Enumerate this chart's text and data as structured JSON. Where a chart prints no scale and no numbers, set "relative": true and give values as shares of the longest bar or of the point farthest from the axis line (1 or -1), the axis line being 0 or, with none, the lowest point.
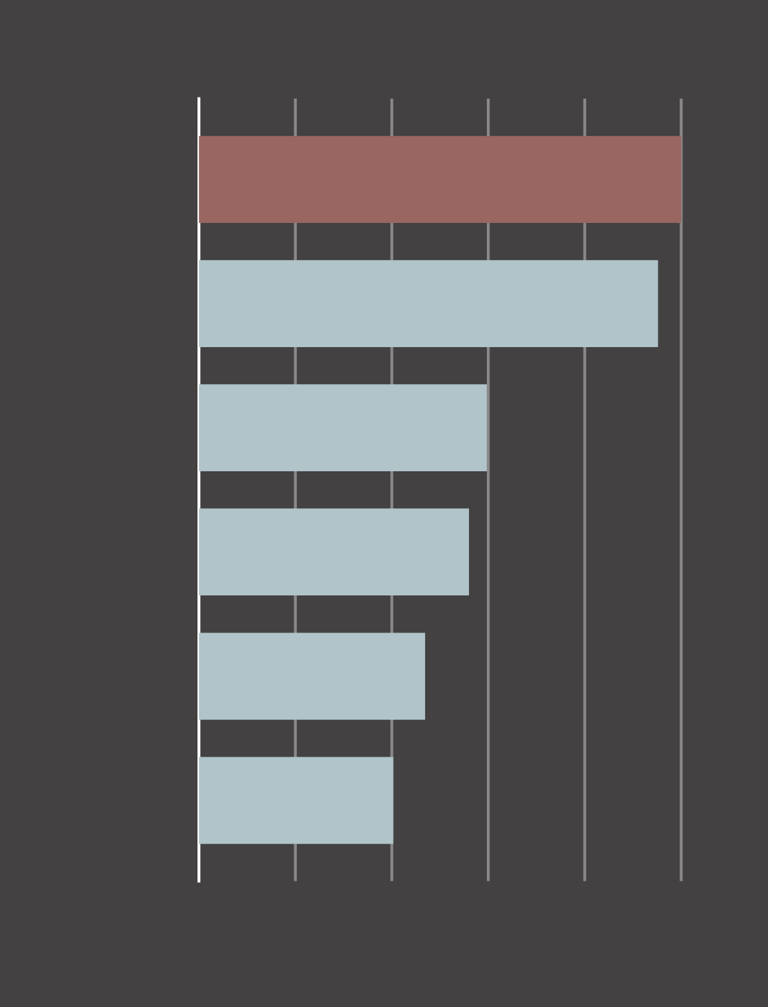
{
  "chart_data": {
    "type": "bar",
    "orientation": "horizontal",
    "relative": true,
    "categories": [
      null,
      null,
      null,
      null,
      null,
      null
    ],
    "values": [
      1,
      0.952,
      0.597,
      0.56,
      0.469,
      0.403
    ],
    "colors": [
      "#9a6662",
      "#b0c4ca",
      "#b0c4ca",
      "#b0c4ca",
      "#b0c4ca",
      "#b0c4ca"
    ],
    "grid": "x",
    "legend": false,
    "tick_labels": false
  }
}
